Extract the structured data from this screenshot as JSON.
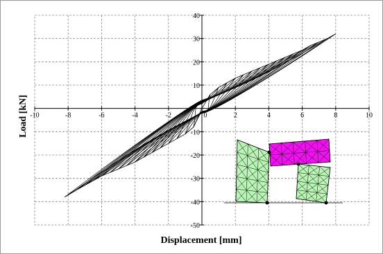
{
  "chart_data": {
    "type": "line",
    "title": "",
    "xlabel": "Displacement [mm]",
    "ylabel": "Load [kN]",
    "xlim": [
      -10,
      10
    ],
    "ylim": [
      -50,
      40
    ],
    "x_ticks": [
      "-10",
      "-8",
      "-6",
      "-4",
      "-2",
      "0",
      "2",
      "4",
      "6",
      "8",
      "10"
    ],
    "y_ticks": [
      "40",
      "30",
      "20",
      "10",
      "-10",
      "-20",
      "-30",
      "-40",
      "-50"
    ],
    "grid": true,
    "legend": "none",
    "series": [
      {
        "description_points": "hysteresis loops: envelope peaks (displacement mm, load kN)",
        "x": [
          0.5,
          1.0,
          1.5,
          2.0,
          2.5,
          3.0,
          3.5,
          4.0,
          4.5,
          5.0,
          5.5,
          6.0,
          6.5,
          7.0,
          7.5,
          8.0
        ],
        "y": [
          6,
          9,
          11,
          13,
          14.5,
          16,
          17.5,
          19,
          20.5,
          22,
          23.5,
          25,
          27,
          28.5,
          30,
          32
        ]
      },
      {
        "x": [
          -0.5,
          -1.0,
          -1.5,
          -2.0,
          -2.5,
          -3.0,
          -3.5,
          -4.0,
          -4.5,
          -5.0,
          -5.5,
          -6.0,
          -6.5,
          -7.0,
          -7.5,
          -8.2
        ],
        "y": [
          -8,
          -11,
          -13,
          -15,
          -17,
          -19,
          -21,
          -23,
          -24.5,
          -26,
          -27.5,
          -29,
          -31,
          -33,
          -35,
          -38
        ]
      }
    ],
    "inset": "schematic of deformed wall specimen"
  },
  "colors": {
    "curve": "#000000",
    "grid": "#8c8c8c",
    "inset_panel_fill": "#b9f5b4",
    "inset_beam_fill": "#f20ff2"
  }
}
